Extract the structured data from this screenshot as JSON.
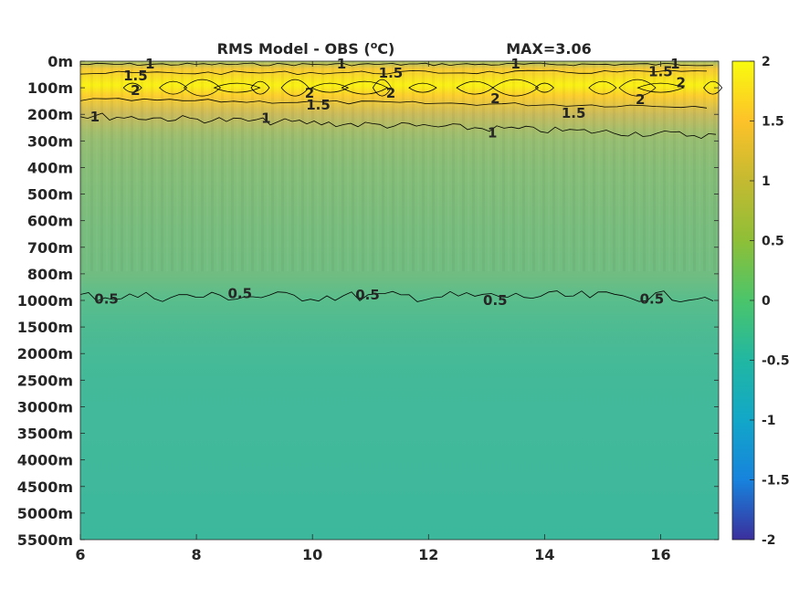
{
  "chart_data": {
    "type": "heatmap",
    "title": "RMS Model - OBS (",
    "title_unit_sup": "o",
    "title_unit_tail": "C)",
    "max_label": "MAX=3.06",
    "x": {
      "ticks": [
        6,
        8,
        10,
        12,
        14,
        16
      ],
      "tick_labels": [
        "6",
        "8",
        "10",
        "12",
        "14",
        "16"
      ],
      "lim": [
        6,
        17
      ]
    },
    "y": {
      "tick_labels": [
        "0m",
        "100m",
        "200m",
        "300m",
        "400m",
        "500m",
        "600m",
        "700m",
        "800m",
        "1000m",
        "1500m",
        "2000m",
        "2500m",
        "3000m",
        "3500m",
        "4000m",
        "4500m",
        "5000m",
        "5500m"
      ]
    },
    "colorbar": {
      "ticks": [
        2,
        1.5,
        1,
        0.5,
        0,
        -0.5,
        -1,
        -1.5,
        -2
      ],
      "tick_labels": [
        "2",
        "1.5",
        "1",
        "0.5",
        "0",
        "-0.5",
        "-1",
        "-1.5",
        "-2"
      ],
      "lim": [
        -2,
        2
      ],
      "colormap": "parula"
    },
    "depth_profile": [
      {
        "level": 0.0,
        "value": 1.0
      },
      {
        "level": 0.3,
        "value": 1.7
      },
      {
        "level": 0.9,
        "value": 1.95
      },
      {
        "level": 1.3,
        "value": 1.75
      },
      {
        "level": 2.0,
        "value": 1.3
      },
      {
        "level": 2.6,
        "value": 1.0
      },
      {
        "level": 3.0,
        "value": 0.9
      },
      {
        "level": 4.0,
        "value": 0.8
      },
      {
        "level": 6.0,
        "value": 0.72
      },
      {
        "level": 8.0,
        "value": 0.66
      },
      {
        "level": 9.0,
        "value": 0.5
      },
      {
        "level": 10.0,
        "value": 0.42
      },
      {
        "level": 11.0,
        "value": 0.37
      },
      {
        "level": 12.0,
        "value": 0.34
      },
      {
        "level": 14.0,
        "value": 0.32
      },
      {
        "level": 16.0,
        "value": 0.31
      },
      {
        "level": 18.0,
        "value": 0.29
      }
    ],
    "contour_levels": [
      0.5,
      1,
      1.5,
      2
    ],
    "contour_labels": [
      {
        "text": "1",
        "x": 7.2,
        "level": 0.1
      },
      {
        "text": "1",
        "x": 10.5,
        "level": 0.1
      },
      {
        "text": "1",
        "x": 13.5,
        "level": 0.1
      },
      {
        "text": "1",
        "x": 16.25,
        "level": 0.1
      },
      {
        "text": "1.5",
        "x": 6.95,
        "level": 0.55
      },
      {
        "text": "1.5",
        "x": 11.35,
        "level": 0.45
      },
      {
        "text": "1.5",
        "x": 16.0,
        "level": 0.4
      },
      {
        "text": "2",
        "x": 6.95,
        "level": 1.1
      },
      {
        "text": "2",
        "x": 9.95,
        "level": 1.2
      },
      {
        "text": "2",
        "x": 11.35,
        "level": 1.2
      },
      {
        "text": "2",
        "x": 13.15,
        "level": 1.4
      },
      {
        "text": "2",
        "x": 15.65,
        "level": 1.45
      },
      {
        "text": "2",
        "x": 16.35,
        "level": 0.8
      },
      {
        "text": "1.5",
        "x": 10.1,
        "level": 1.65
      },
      {
        "text": "1.5",
        "x": 14.5,
        "level": 1.95
      },
      {
        "text": "1",
        "x": 6.25,
        "level": 2.1
      },
      {
        "text": "1",
        "x": 9.2,
        "level": 2.15
      },
      {
        "text": "1",
        "x": 13.1,
        "level": 2.7
      },
      {
        "text": "0.5",
        "x": 6.45,
        "level": 8.95
      },
      {
        "text": "0.5",
        "x": 8.75,
        "level": 8.75
      },
      {
        "text": "0.5",
        "x": 10.95,
        "level": 8.8
      },
      {
        "text": "0.5",
        "x": 13.15,
        "level": 9.0
      },
      {
        "text": "0.5",
        "x": 15.85,
        "level": 8.95
      }
    ]
  }
}
